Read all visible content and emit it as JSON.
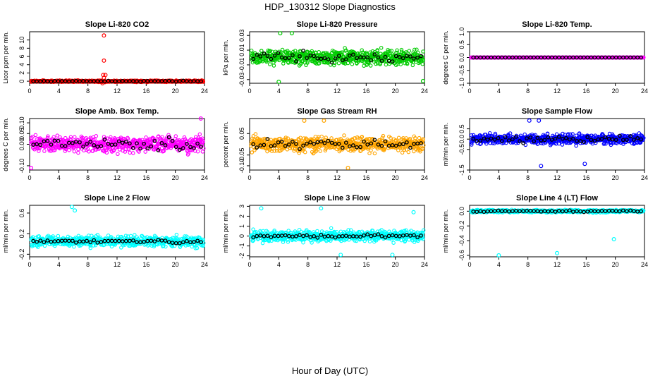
{
  "title": "HDP_130312  Slope Diagnostics",
  "xlabel": "Hour of Day (UTC)",
  "colors": {
    "co2": "#ff0000",
    "pressure": "#00cc00",
    "temp": "#ff00ff",
    "box_temp": "#ff00ff",
    "rh": "#ffa500",
    "sample_flow": "#0000ff",
    "line_flow": "#00ffff",
    "hourly": "#000000"
  },
  "chart_data": [
    {
      "type": "scatter",
      "title": "Slope Li-820 CO2",
      "ylabel": "Licor ppm per min.",
      "xlim": [
        0,
        24
      ],
      "ylim": [
        -0.5,
        12
      ],
      "xticks": [
        "0",
        "4",
        "8",
        "12",
        "16",
        "20",
        "24"
      ],
      "yticks": [
        "0",
        "2",
        "4",
        "6",
        "8",
        "10"
      ],
      "ytick_values": [
        0,
        2,
        4,
        6,
        8,
        10
      ],
      "color": "#ff0000",
      "base": 0.0,
      "spread": 0.3,
      "hourly_spread": 0.15,
      "outliers": [
        [
          10.2,
          11.1
        ],
        [
          10.2,
          5.0
        ],
        [
          10.1,
          1.5
        ],
        [
          10.4,
          1.5
        ],
        [
          10.2,
          0.8
        ],
        [
          10.0,
          -0.5
        ]
      ],
      "grid": false,
      "legend": "none"
    },
    {
      "type": "scatter",
      "title": "Slope Li-820 Pressure",
      "ylabel": "kPa per min.",
      "xlim": [
        0,
        24
      ],
      "ylim": [
        -0.035,
        0.035
      ],
      "xticks": [
        "0",
        "4",
        "8",
        "12",
        "16",
        "20",
        "24"
      ],
      "yticks": [
        "-0.03",
        "-0.01",
        "0.01",
        "0.03"
      ],
      "ytick_values": [
        -0.03,
        -0.01,
        0.01,
        0.03
      ],
      "color": "#00cc00",
      "base": 0.0,
      "spread": 0.015,
      "hourly_spread": 0.01,
      "outliers": [
        [
          4.2,
          0.033
        ],
        [
          5.8,
          0.033
        ],
        [
          4.0,
          -0.033
        ],
        [
          23.8,
          -0.032
        ]
      ],
      "grid": false,
      "legend": "none"
    },
    {
      "type": "scatter",
      "title": "Slope Li-820 Temp.",
      "ylabel": "degrees C per min.",
      "xlim": [
        0,
        24
      ],
      "ylim": [
        -1.0,
        1.0
      ],
      "xticks": [
        "0",
        "4",
        "8",
        "12",
        "16",
        "20",
        "24"
      ],
      "yticks": [
        "-1.0",
        "-0.5",
        "0.0",
        "0.5",
        "1.0"
      ],
      "ytick_values": [
        -1.0,
        -0.5,
        0.0,
        0.5,
        1.0
      ],
      "color": "#ff00ff",
      "base": 0.0,
      "spread": 0.0,
      "hourly_spread": 0.0,
      "outliers": [],
      "grid": false,
      "legend": "none"
    },
    {
      "type": "scatter",
      "title": "Slope Amb. Box Temp.",
      "ylabel": "degrees C per min.",
      "xlim": [
        0,
        24
      ],
      "ylim": [
        -0.12,
        0.12
      ],
      "xticks": [
        "0",
        "4",
        "8",
        "12",
        "16",
        "20",
        "24"
      ],
      "yticks": [
        "-0.10",
        "0.00",
        "0.05",
        "0.10"
      ],
      "ytick_values": [
        -0.1,
        0.0,
        0.05,
        0.1
      ],
      "color": "#ff00ff",
      "base": 0.0,
      "spread": 0.05,
      "hourly_spread": 0.04,
      "outliers": [
        [
          0.2,
          -0.11
        ],
        [
          23.5,
          0.12
        ]
      ],
      "grid": false,
      "legend": "none"
    },
    {
      "type": "scatter",
      "title": "Slope Gas Stream RH",
      "ylabel": "percent per min.",
      "xlim": [
        0,
        24
      ],
      "ylim": [
        -0.12,
        0.12
      ],
      "xticks": [
        "0",
        "4",
        "8",
        "12",
        "16",
        "20",
        "24"
      ],
      "yticks": [
        "-0.10",
        "-0.05",
        "0.05"
      ],
      "ytick_values": [
        -0.1,
        -0.05,
        0.05
      ],
      "color": "#ffa500",
      "base": 0.0,
      "spread": 0.05,
      "hourly_spread": 0.03,
      "outliers": [
        [
          7.5,
          0.11
        ],
        [
          10.2,
          0.11
        ],
        [
          13.5,
          -0.11
        ]
      ],
      "grid": false,
      "legend": "none"
    },
    {
      "type": "scatter",
      "title": "Slope Sample Flow",
      "ylabel": "ml/min per min.",
      "xlim": [
        0,
        24
      ],
      "ylim": [
        -1.5,
        1.0
      ],
      "xticks": [
        "0",
        "4",
        "8",
        "12",
        "16",
        "20",
        "24"
      ],
      "yticks": [
        "-1.5",
        "-0.5",
        "0.0",
        "0.5"
      ],
      "ytick_values": [
        -1.5,
        -0.5,
        0.0,
        0.5
      ],
      "color": "#0000ff",
      "base": 0.0,
      "spread": 0.35,
      "hourly_spread": 0.25,
      "outliers": [
        [
          9.8,
          -1.3
        ],
        [
          15.8,
          -1.2
        ],
        [
          8.2,
          0.9
        ],
        [
          9.5,
          0.9
        ]
      ],
      "grid": false,
      "legend": "none"
    },
    {
      "type": "scatter",
      "title": "Slope Line 2 Flow",
      "ylabel": "ml/min per min.",
      "xlim": [
        0,
        24
      ],
      "ylim": [
        -0.25,
        0.75
      ],
      "xticks": [
        "0",
        "4",
        "8",
        "12",
        "16",
        "20",
        "24"
      ],
      "yticks": [
        "-0.2",
        "0.2",
        "0.6"
      ],
      "ytick_values": [
        -0.2,
        0.2,
        0.6
      ],
      "color": "#00ffff",
      "base": 0.05,
      "spread": 0.15,
      "hourly_spread": 0.05,
      "outliers": [
        [
          5.8,
          0.72
        ],
        [
          6.2,
          0.65
        ]
      ],
      "grid": false,
      "legend": "none"
    },
    {
      "type": "scatter",
      "title": "Slope Line 3 Flow",
      "ylabel": "ml/min per min.",
      "xlim": [
        0,
        24
      ],
      "ylim": [
        -2.1,
        3.1
      ],
      "xticks": [
        "0",
        "4",
        "8",
        "12",
        "16",
        "20",
        "24"
      ],
      "yticks": [
        "-2",
        "-1",
        "0",
        "1",
        "2",
        "3"
      ],
      "ytick_values": [
        -2,
        -1,
        0,
        1,
        2,
        3
      ],
      "color": "#00ffff",
      "base": 0.0,
      "spread": 0.8,
      "hourly_spread": 0.3,
      "outliers": [
        [
          1.6,
          2.8
        ],
        [
          9.8,
          2.8
        ],
        [
          22.5,
          2.4
        ],
        [
          12.5,
          -1.9
        ],
        [
          19.6,
          -1.9
        ]
      ],
      "grid": false,
      "legend": "none"
    },
    {
      "type": "scatter",
      "title": "Slope Line 4 (LT) Flow",
      "ylabel": "ml/min per min.",
      "xlim": [
        0,
        24
      ],
      "ylim": [
        -0.62,
        0.08
      ],
      "xticks": [
        "0",
        "4",
        "8",
        "12",
        "16",
        "20",
        "24"
      ],
      "yticks": [
        "-0.6",
        "-0.4",
        "-0.2",
        "0.0"
      ],
      "ytick_values": [
        -0.6,
        -0.4,
        -0.2,
        0.0
      ],
      "color": "#00ffff",
      "base": 0.0,
      "spread": 0.025,
      "hourly_spread": 0.015,
      "outliers": [
        [
          4.0,
          -0.6
        ],
        [
          12.0,
          -0.57
        ],
        [
          19.8,
          -0.38
        ]
      ],
      "grid": false,
      "legend": "none"
    }
  ]
}
